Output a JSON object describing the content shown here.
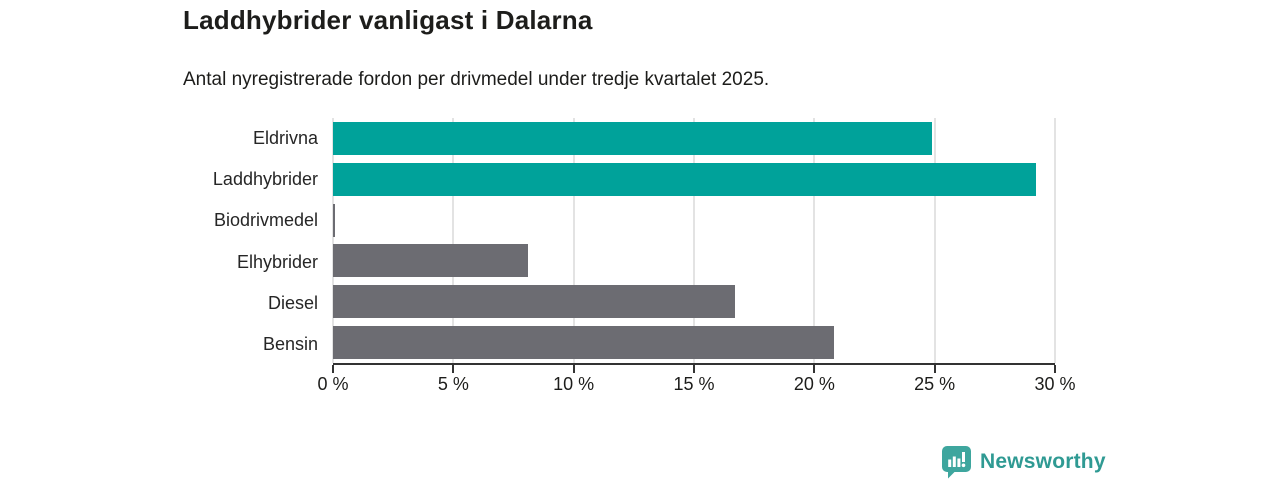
{
  "header": {
    "title": "Laddhybrider vanligast i Dalarna",
    "subtitle": "Antal nyregistrerade fordon per drivmedel under tredje kvartalet 2025."
  },
  "chart_data": {
    "type": "bar",
    "orientation": "horizontal",
    "title": "Laddhybrider vanligast i Dalarna",
    "subtitle": "Antal nyregistrerade fordon per drivmedel under tredje kvartalet 2025.",
    "categories": [
      "Eldrivna",
      "Laddhybrider",
      "Biodrivmedel",
      "Elhybrider",
      "Diesel",
      "Bensin"
    ],
    "values": [
      24.9,
      29.2,
      0.1,
      8.1,
      16.7,
      20.8
    ],
    "bar_colors": [
      "#00a29a",
      "#00a29a",
      "#6c6c72",
      "#6c6c72",
      "#6c6c72",
      "#6c6c72"
    ],
    "xlabel": "",
    "ylabel": "",
    "xlim": [
      0,
      30
    ],
    "x_ticks": [
      0,
      5,
      10,
      15,
      20,
      25,
      30
    ],
    "x_tick_labels": [
      "0 %",
      "5 %",
      "10 %",
      "15 %",
      "20 %",
      "25 %",
      "30 %"
    ],
    "grid": "vertical gridlines on",
    "legend": "none"
  },
  "colors": {
    "teal": "#00a29a",
    "gray": "#6c6c72",
    "gridline": "#e3e3e3",
    "axis": "#333333",
    "text": "#1d1d1b",
    "logo_text": "#2f9a93",
    "logo_icon": "#3ea69e"
  },
  "branding": {
    "logo_text": "Newsworthy"
  }
}
